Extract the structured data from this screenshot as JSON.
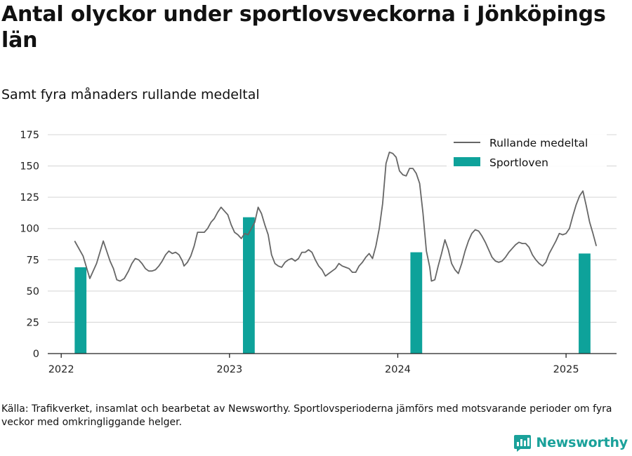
{
  "title": "Antal olyckor under sportlovsveckorna i Jönköpings län",
  "subtitle": "Samt fyra månaders rullande medeltal",
  "source": "Källa: Trafikverket, insamlat och bearbetat av Newsworthy. Sportlovsperioderna jämförs med motsvarande perioder om fyra veckor med omkringliggande helger.",
  "brand": {
    "name": "Newsworthy",
    "icon": "newsworthy-logo-icon",
    "color": "#1aa19a"
  },
  "chart_data": {
    "type": "bar+line",
    "ylim": [
      0,
      175
    ],
    "xlim": [
      2021.92,
      2025.3
    ],
    "y_ticks": [
      "0",
      "25",
      "50",
      "75",
      "100",
      "125",
      "150",
      "175"
    ],
    "x_ticks": [
      {
        "value": 2022,
        "label": "2022"
      },
      {
        "value": 2023,
        "label": "2023"
      },
      {
        "value": 2024,
        "label": "2024"
      },
      {
        "value": 2025,
        "label": "2025"
      }
    ],
    "grid": true,
    "legend_position": "top-right",
    "series": [
      {
        "name": "Rullande medeltal",
        "kind": "line",
        "color": "#666666",
        "points": [
          [
            2022.08,
            90
          ],
          [
            2022.13,
            78
          ],
          [
            2022.17,
            60
          ],
          [
            2022.21,
            72
          ],
          [
            2022.25,
            90
          ],
          [
            2022.29,
            74
          ],
          [
            2022.31,
            68
          ],
          [
            2022.33,
            59
          ],
          [
            2022.35,
            58
          ],
          [
            2022.375,
            60
          ],
          [
            2022.4,
            66
          ],
          [
            2022.42,
            72
          ],
          [
            2022.44,
            76
          ],
          [
            2022.46,
            75
          ],
          [
            2022.48,
            72
          ],
          [
            2022.5,
            68
          ],
          [
            2022.52,
            66
          ],
          [
            2022.54,
            66
          ],
          [
            2022.56,
            67
          ],
          [
            2022.58,
            70
          ],
          [
            2022.6,
            74
          ],
          [
            2022.62,
            79
          ],
          [
            2022.64,
            82
          ],
          [
            2022.66,
            80
          ],
          [
            2022.68,
            81
          ],
          [
            2022.7,
            79
          ],
          [
            2022.72,
            74
          ],
          [
            2022.73,
            70
          ],
          [
            2022.75,
            73
          ],
          [
            2022.77,
            78
          ],
          [
            2022.79,
            86
          ],
          [
            2022.81,
            97
          ],
          [
            2022.83,
            97
          ],
          [
            2022.85,
            97
          ],
          [
            2022.87,
            100
          ],
          [
            2022.89,
            105
          ],
          [
            2022.91,
            108
          ],
          [
            2022.93,
            113
          ],
          [
            2022.95,
            117
          ],
          [
            2022.97,
            114
          ],
          [
            2022.99,
            111
          ],
          [
            2023.01,
            103
          ],
          [
            2023.03,
            97
          ],
          [
            2023.05,
            95
          ],
          [
            2023.07,
            92
          ],
          [
            2023.09,
            96
          ],
          [
            2023.11,
            95
          ],
          [
            2023.13,
            100
          ],
          [
            2023.15,
            105
          ],
          [
            2023.17,
            117
          ],
          [
            2023.19,
            112
          ],
          [
            2023.21,
            103
          ],
          [
            2023.23,
            95
          ],
          [
            2023.25,
            79
          ],
          [
            2023.27,
            72
          ],
          [
            2023.29,
            70
          ],
          [
            2023.31,
            69
          ],
          [
            2023.33,
            73
          ],
          [
            2023.35,
            75
          ],
          [
            2023.37,
            76
          ],
          [
            2023.39,
            74
          ],
          [
            2023.41,
            76
          ],
          [
            2023.43,
            81
          ],
          [
            2023.45,
            81
          ],
          [
            2023.47,
            83
          ],
          [
            2023.49,
            81
          ],
          [
            2023.51,
            75
          ],
          [
            2023.53,
            70
          ],
          [
            2023.55,
            67
          ],
          [
            2023.57,
            62
          ],
          [
            2023.59,
            64
          ],
          [
            2023.61,
            66
          ],
          [
            2023.63,
            68
          ],
          [
            2023.65,
            72
          ],
          [
            2023.67,
            70
          ],
          [
            2023.69,
            69
          ],
          [
            2023.71,
            68
          ],
          [
            2023.73,
            65
          ],
          [
            2023.75,
            65
          ],
          [
            2023.77,
            70
          ],
          [
            2023.79,
            73
          ],
          [
            2023.81,
            77
          ],
          [
            2023.83,
            80
          ],
          [
            2023.85,
            76
          ],
          [
            2023.87,
            86
          ],
          [
            2023.89,
            100
          ],
          [
            2023.91,
            120
          ],
          [
            2023.93,
            152
          ],
          [
            2023.95,
            161
          ],
          [
            2023.97,
            160
          ],
          [
            2023.99,
            157
          ],
          [
            2024.01,
            146
          ],
          [
            2024.03,
            143
          ],
          [
            2024.05,
            142
          ],
          [
            2024.07,
            148
          ],
          [
            2024.09,
            148
          ],
          [
            2024.11,
            144
          ],
          [
            2024.13,
            136
          ],
          [
            2024.15,
            112
          ],
          [
            2024.17,
            82
          ],
          [
            2024.19,
            69
          ],
          [
            2024.2,
            58
          ],
          [
            2024.22,
            59
          ],
          [
            2024.24,
            70
          ],
          [
            2024.26,
            80
          ],
          [
            2024.28,
            91
          ],
          [
            2024.3,
            83
          ],
          [
            2024.32,
            72
          ],
          [
            2024.34,
            67
          ],
          [
            2024.36,
            64
          ],
          [
            2024.38,
            72
          ],
          [
            2024.4,
            82
          ],
          [
            2024.42,
            90
          ],
          [
            2024.44,
            96
          ],
          [
            2024.46,
            99
          ],
          [
            2024.48,
            98
          ],
          [
            2024.5,
            94
          ],
          [
            2024.52,
            89
          ],
          [
            2024.54,
            83
          ],
          [
            2024.56,
            77
          ],
          [
            2024.58,
            74
          ],
          [
            2024.6,
            73
          ],
          [
            2024.62,
            74
          ],
          [
            2024.64,
            77
          ],
          [
            2024.66,
            81
          ],
          [
            2024.68,
            84
          ],
          [
            2024.7,
            87
          ],
          [
            2024.72,
            89
          ],
          [
            2024.74,
            88
          ],
          [
            2024.76,
            88
          ],
          [
            2024.78,
            85
          ],
          [
            2024.8,
            79
          ],
          [
            2024.82,
            75
          ],
          [
            2024.84,
            72
          ],
          [
            2024.86,
            70
          ],
          [
            2024.88,
            73
          ],
          [
            2024.9,
            80
          ],
          [
            2024.92,
            85
          ],
          [
            2024.94,
            90
          ],
          [
            2024.96,
            96
          ],
          [
            2024.98,
            95
          ],
          [
            2025.0,
            96
          ],
          [
            2025.02,
            100
          ],
          [
            2025.04,
            110
          ],
          [
            2025.06,
            119
          ],
          [
            2025.08,
            126
          ],
          [
            2025.1,
            130
          ],
          [
            2025.12,
            118
          ],
          [
            2025.14,
            105
          ],
          [
            2025.16,
            96
          ],
          [
            2025.18,
            86
          ]
        ]
      },
      {
        "name": "Sportloven",
        "kind": "bar",
        "color": "#0ea29a",
        "width_years": 0.07,
        "points": [
          [
            2022.115,
            69
          ],
          [
            2023.115,
            109
          ],
          [
            2024.11,
            81
          ],
          [
            2025.11,
            80
          ]
        ]
      }
    ]
  }
}
